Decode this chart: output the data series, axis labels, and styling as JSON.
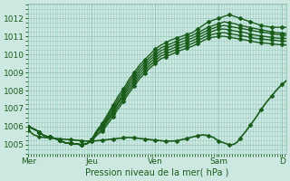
{
  "bg_color": "#cce8e0",
  "plot_bg_color": "#cce8e0",
  "grid_color": "#99ccc0",
  "line_color": "#1a5c1a",
  "ylabel_text": "Pression niveau de la mer( hPa )",
  "ylim": [
    1004.5,
    1012.8
  ],
  "yticks": [
    1005,
    1006,
    1007,
    1008,
    1009,
    1010,
    1011,
    1012
  ],
  "xtick_labels": [
    "Mer",
    "Jeu",
    "Ven",
    "Sam",
    "D"
  ],
  "xtick_positions": [
    0,
    48,
    96,
    144,
    192
  ],
  "total_points": 196,
  "lines": [
    {
      "comment": "line 1 - goes highest ~1012.2 at Sam, ends ~1011.5",
      "pts": [
        [
          0,
          1006.0
        ],
        [
          6,
          1005.8
        ],
        [
          12,
          1005.5
        ],
        [
          20,
          1005.35
        ],
        [
          28,
          1005.1
        ],
        [
          36,
          1005.05
        ],
        [
          40,
          1005.0
        ],
        [
          44,
          1005.05
        ],
        [
          48,
          1005.3
        ],
        [
          52,
          1005.8
        ],
        [
          56,
          1006.2
        ],
        [
          60,
          1006.7
        ],
        [
          64,
          1007.2
        ],
        [
          68,
          1007.7
        ],
        [
          72,
          1008.1
        ],
        [
          76,
          1008.6
        ],
        [
          80,
          1009.0
        ],
        [
          84,
          1009.4
        ],
        [
          88,
          1009.7
        ],
        [
          92,
          1010.0
        ],
        [
          96,
          1010.3
        ],
        [
          100,
          1010.5
        ],
        [
          108,
          1010.8
        ],
        [
          116,
          1011.0
        ],
        [
          120,
          1011.1
        ],
        [
          124,
          1011.2
        ],
        [
          128,
          1011.4
        ],
        [
          132,
          1011.6
        ],
        [
          136,
          1011.8
        ],
        [
          140,
          1011.9
        ],
        [
          144,
          1012.0
        ],
        [
          148,
          1012.1
        ],
        [
          152,
          1012.2
        ],
        [
          156,
          1012.1
        ],
        [
          160,
          1012.0
        ],
        [
          164,
          1011.9
        ],
        [
          168,
          1011.8
        ],
        [
          172,
          1011.7
        ],
        [
          176,
          1011.6
        ],
        [
          180,
          1011.55
        ],
        [
          184,
          1011.5
        ],
        [
          188,
          1011.5
        ],
        [
          192,
          1011.5
        ],
        [
          196,
          1011.5
        ]
      ]
    },
    {
      "comment": "line 2 - goes to ~1011.8 at Sam, ends ~1011.3",
      "pts": [
        [
          0,
          1006.0
        ],
        [
          6,
          1005.8
        ],
        [
          12,
          1005.5
        ],
        [
          20,
          1005.35
        ],
        [
          28,
          1005.1
        ],
        [
          36,
          1005.05
        ],
        [
          40,
          1005.0
        ],
        [
          44,
          1005.05
        ],
        [
          48,
          1005.3
        ],
        [
          52,
          1005.8
        ],
        [
          56,
          1006.1
        ],
        [
          60,
          1006.6
        ],
        [
          64,
          1007.05
        ],
        [
          68,
          1007.55
        ],
        [
          72,
          1007.95
        ],
        [
          76,
          1008.45
        ],
        [
          80,
          1008.85
        ],
        [
          84,
          1009.25
        ],
        [
          88,
          1009.55
        ],
        [
          92,
          1009.85
        ],
        [
          96,
          1010.1
        ],
        [
          100,
          1010.35
        ],
        [
          108,
          1010.6
        ],
        [
          116,
          1010.85
        ],
        [
          120,
          1010.95
        ],
        [
          124,
          1011.05
        ],
        [
          128,
          1011.2
        ],
        [
          132,
          1011.35
        ],
        [
          136,
          1011.5
        ],
        [
          140,
          1011.6
        ],
        [
          144,
          1011.7
        ],
        [
          148,
          1011.8
        ],
        [
          152,
          1011.75
        ],
        [
          156,
          1011.7
        ],
        [
          160,
          1011.6
        ],
        [
          164,
          1011.55
        ],
        [
          168,
          1011.48
        ],
        [
          172,
          1011.42
        ],
        [
          180,
          1011.3
        ],
        [
          188,
          1011.2
        ],
        [
          196,
          1011.15
        ]
      ]
    },
    {
      "comment": "line 3 - one-liner going to ~1011.6 Sam, ends ~1011.2",
      "pts": [
        [
          0,
          1006.0
        ],
        [
          6,
          1005.8
        ],
        [
          12,
          1005.5
        ],
        [
          20,
          1005.35
        ],
        [
          28,
          1005.1
        ],
        [
          36,
          1005.05
        ],
        [
          40,
          1005.0
        ],
        [
          44,
          1005.05
        ],
        [
          48,
          1005.3
        ],
        [
          52,
          1005.8
        ],
        [
          56,
          1006.0
        ],
        [
          60,
          1006.5
        ],
        [
          64,
          1006.9
        ],
        [
          68,
          1007.4
        ],
        [
          72,
          1007.8
        ],
        [
          76,
          1008.3
        ],
        [
          80,
          1008.7
        ],
        [
          84,
          1009.1
        ],
        [
          88,
          1009.4
        ],
        [
          92,
          1009.7
        ],
        [
          96,
          1009.95
        ],
        [
          100,
          1010.2
        ],
        [
          108,
          1010.45
        ],
        [
          116,
          1010.7
        ],
        [
          120,
          1010.8
        ],
        [
          124,
          1010.9
        ],
        [
          128,
          1011.05
        ],
        [
          132,
          1011.2
        ],
        [
          136,
          1011.35
        ],
        [
          140,
          1011.45
        ],
        [
          144,
          1011.55
        ],
        [
          148,
          1011.6
        ],
        [
          152,
          1011.55
        ],
        [
          156,
          1011.5
        ],
        [
          160,
          1011.45
        ],
        [
          164,
          1011.4
        ],
        [
          168,
          1011.35
        ],
        [
          172,
          1011.28
        ],
        [
          180,
          1011.2
        ],
        [
          188,
          1011.1
        ],
        [
          196,
          1011.05
        ]
      ]
    },
    {
      "comment": "line 4 - goes to ~1011.4 Sam, ends ~1011.0",
      "pts": [
        [
          0,
          1006.0
        ],
        [
          6,
          1005.8
        ],
        [
          12,
          1005.5
        ],
        [
          20,
          1005.35
        ],
        [
          28,
          1005.1
        ],
        [
          36,
          1005.05
        ],
        [
          40,
          1005.0
        ],
        [
          44,
          1005.05
        ],
        [
          48,
          1005.3
        ],
        [
          52,
          1005.75
        ],
        [
          56,
          1005.95
        ],
        [
          60,
          1006.4
        ],
        [
          64,
          1006.8
        ],
        [
          68,
          1007.3
        ],
        [
          72,
          1007.7
        ],
        [
          76,
          1008.15
        ],
        [
          80,
          1008.55
        ],
        [
          84,
          1008.95
        ],
        [
          88,
          1009.25
        ],
        [
          92,
          1009.55
        ],
        [
          96,
          1009.8
        ],
        [
          100,
          1010.05
        ],
        [
          108,
          1010.3
        ],
        [
          116,
          1010.55
        ],
        [
          120,
          1010.65
        ],
        [
          124,
          1010.75
        ],
        [
          128,
          1010.9
        ],
        [
          132,
          1011.05
        ],
        [
          136,
          1011.2
        ],
        [
          140,
          1011.3
        ],
        [
          144,
          1011.4
        ],
        [
          148,
          1011.4
        ],
        [
          152,
          1011.35
        ],
        [
          156,
          1011.3
        ],
        [
          160,
          1011.25
        ],
        [
          164,
          1011.2
        ],
        [
          168,
          1011.12
        ],
        [
          172,
          1011.06
        ],
        [
          180,
          1010.98
        ],
        [
          188,
          1010.9
        ],
        [
          196,
          1010.88
        ]
      ]
    },
    {
      "comment": "line 5 - goes to ~1011.2 Sam, ends ~1010.85",
      "pts": [
        [
          0,
          1006.0
        ],
        [
          6,
          1005.8
        ],
        [
          12,
          1005.5
        ],
        [
          20,
          1005.35
        ],
        [
          28,
          1005.1
        ],
        [
          36,
          1005.05
        ],
        [
          40,
          1005.0
        ],
        [
          44,
          1005.05
        ],
        [
          48,
          1005.25
        ],
        [
          52,
          1005.65
        ],
        [
          56,
          1005.85
        ],
        [
          60,
          1006.3
        ],
        [
          64,
          1006.7
        ],
        [
          68,
          1007.15
        ],
        [
          72,
          1007.55
        ],
        [
          76,
          1008.0
        ],
        [
          80,
          1008.4
        ],
        [
          84,
          1008.8
        ],
        [
          88,
          1009.1
        ],
        [
          92,
          1009.4
        ],
        [
          96,
          1009.65
        ],
        [
          100,
          1009.9
        ],
        [
          108,
          1010.15
        ],
        [
          116,
          1010.4
        ],
        [
          120,
          1010.5
        ],
        [
          124,
          1010.6
        ],
        [
          128,
          1010.75
        ],
        [
          132,
          1010.9
        ],
        [
          136,
          1011.05
        ],
        [
          140,
          1011.12
        ],
        [
          144,
          1011.18
        ],
        [
          148,
          1011.2
        ],
        [
          152,
          1011.15
        ],
        [
          156,
          1011.1
        ],
        [
          160,
          1011.05
        ],
        [
          164,
          1011.0
        ],
        [
          168,
          1010.94
        ],
        [
          172,
          1010.88
        ],
        [
          180,
          1010.82
        ],
        [
          188,
          1010.76
        ],
        [
          196,
          1010.72
        ]
      ]
    },
    {
      "comment": "line 6 - lowest line, goes to ~1011.0 Sam, ends ~1010.6",
      "pts": [
        [
          0,
          1006.0
        ],
        [
          6,
          1005.8
        ],
        [
          12,
          1005.5
        ],
        [
          20,
          1005.35
        ],
        [
          28,
          1005.1
        ],
        [
          36,
          1005.05
        ],
        [
          40,
          1005.0
        ],
        [
          44,
          1005.05
        ],
        [
          48,
          1005.2
        ],
        [
          52,
          1005.55
        ],
        [
          56,
          1005.75
        ],
        [
          60,
          1006.15
        ],
        [
          64,
          1006.55
        ],
        [
          68,
          1007.0
        ],
        [
          72,
          1007.4
        ],
        [
          76,
          1007.85
        ],
        [
          80,
          1008.25
        ],
        [
          84,
          1008.65
        ],
        [
          88,
          1008.95
        ],
        [
          92,
          1009.25
        ],
        [
          96,
          1009.5
        ],
        [
          100,
          1009.75
        ],
        [
          108,
          1010.0
        ],
        [
          116,
          1010.25
        ],
        [
          120,
          1010.35
        ],
        [
          124,
          1010.45
        ],
        [
          128,
          1010.6
        ],
        [
          132,
          1010.75
        ],
        [
          136,
          1010.9
        ],
        [
          140,
          1010.95
        ],
        [
          144,
          1011.0
        ],
        [
          148,
          1011.0
        ],
        [
          152,
          1010.95
        ],
        [
          156,
          1010.9
        ],
        [
          160,
          1010.85
        ],
        [
          164,
          1010.8
        ],
        [
          168,
          1010.75
        ],
        [
          172,
          1010.68
        ],
        [
          180,
          1010.62
        ],
        [
          188,
          1010.55
        ],
        [
          196,
          1010.52
        ]
      ]
    },
    {
      "comment": "line 7 (prominent/noisy) - goes dip then rises to ~1010.5 with V dip to 1005",
      "pts": [
        [
          0,
          1005.8
        ],
        [
          4,
          1005.55
        ],
        [
          8,
          1005.45
        ],
        [
          12,
          1005.4
        ],
        [
          16,
          1005.38
        ],
        [
          20,
          1005.35
        ],
        [
          24,
          1005.32
        ],
        [
          28,
          1005.3
        ],
        [
          32,
          1005.28
        ],
        [
          36,
          1005.25
        ],
        [
          40,
          1005.22
        ],
        [
          44,
          1005.2
        ],
        [
          48,
          1005.2
        ],
        [
          52,
          1005.22
        ],
        [
          56,
          1005.25
        ],
        [
          60,
          1005.28
        ],
        [
          64,
          1005.32
        ],
        [
          68,
          1005.35
        ],
        [
          72,
          1005.38
        ],
        [
          76,
          1005.4
        ],
        [
          80,
          1005.38
        ],
        [
          84,
          1005.35
        ],
        [
          88,
          1005.32
        ],
        [
          92,
          1005.28
        ],
        [
          96,
          1005.25
        ],
        [
          100,
          1005.22
        ],
        [
          104,
          1005.2
        ],
        [
          108,
          1005.2
        ],
        [
          112,
          1005.22
        ],
        [
          116,
          1005.28
        ],
        [
          120,
          1005.35
        ],
        [
          124,
          1005.42
        ],
        [
          128,
          1005.5
        ],
        [
          132,
          1005.55
        ],
        [
          136,
          1005.5
        ],
        [
          140,
          1005.4
        ],
        [
          144,
          1005.2
        ],
        [
          148,
          1005.1
        ],
        [
          150,
          1005.05
        ],
        [
          152,
          1005.0
        ],
        [
          154,
          1005.0
        ],
        [
          156,
          1005.05
        ],
        [
          158,
          1005.15
        ],
        [
          160,
          1005.35
        ],
        [
          164,
          1005.7
        ],
        [
          168,
          1006.1
        ],
        [
          172,
          1006.5
        ],
        [
          176,
          1006.95
        ],
        [
          180,
          1007.35
        ],
        [
          184,
          1007.7
        ],
        [
          188,
          1008.05
        ],
        [
          192,
          1008.35
        ],
        [
          196,
          1008.6
        ]
      ]
    }
  ]
}
